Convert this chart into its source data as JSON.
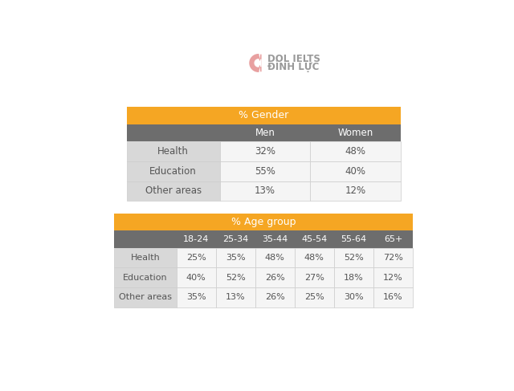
{
  "title_gender": "% Gender",
  "title_age": "% Age group",
  "gender_headers": [
    "",
    "Men",
    "Women"
  ],
  "gender_rows": [
    [
      "Health",
      "32%",
      "48%"
    ],
    [
      "Education",
      "55%",
      "40%"
    ],
    [
      "Other areas",
      "13%",
      "12%"
    ]
  ],
  "age_headers": [
    "",
    "18-24",
    "25-34",
    "35-44",
    "45-54",
    "55-64",
    "65+"
  ],
  "age_rows": [
    [
      "Health",
      "25%",
      "35%",
      "48%",
      "48%",
      "52%",
      "72%"
    ],
    [
      "Education",
      "40%",
      "52%",
      "26%",
      "27%",
      "18%",
      "12%"
    ],
    [
      "Other areas",
      "35%",
      "13%",
      "26%",
      "25%",
      "30%",
      "16%"
    ]
  ],
  "orange_color": "#F5A623",
  "header_gray": "#6d6d6d",
  "row_label_bg": "#D8D8D8",
  "cell_bg": "#F5F5F5",
  "header_text_color": "#FFFFFF",
  "row_label_text_color": "#555555",
  "cell_text_color": "#555555",
  "title_text_color": "#FFFFFF",
  "bg_color": "#FFFFFF",
  "logo_pink": "#E8A0A0",
  "logo_text_color": "#999999",
  "table_border_color": "#cccccc"
}
